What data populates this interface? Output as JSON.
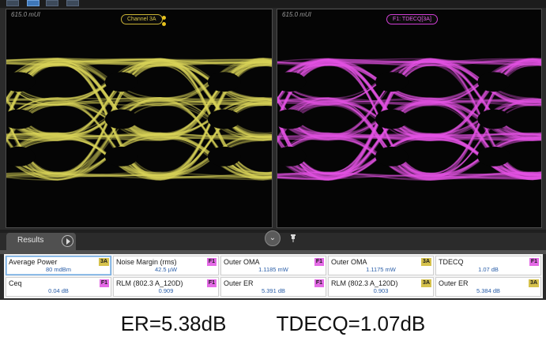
{
  "colors": {
    "channel_3a": "#d9d35a",
    "f1_math": "#e552e4"
  },
  "panes": {
    "left": {
      "scale": "615.0 mUI",
      "source": "Channel 3A"
    },
    "right": {
      "scale": "615.0 mUI",
      "source": "F1: TDECQ[3A]"
    }
  },
  "results": {
    "tab_label": "Results",
    "measurements": [
      {
        "name": "Average Power",
        "source": "3A",
        "value": "80 mdBm"
      },
      {
        "name": "Noise Margin (rms)",
        "source": "F1",
        "value": "42.5 µW"
      },
      {
        "name": "Outer OMA",
        "source": "F1",
        "value": "1.1185 mW"
      },
      {
        "name": "Outer OMA",
        "source": "3A",
        "value": "1.1175 mW"
      },
      {
        "name": "TDECQ",
        "source": "F1",
        "value": "1.07 dB"
      },
      {
        "name": "Ceq",
        "source": "F1",
        "value": "0.04 dB"
      },
      {
        "name": "RLM (802.3 A_120D)",
        "source": "F1",
        "value": "0.909"
      },
      {
        "name": "Outer ER",
        "source": "F1",
        "value": "5.391 dB"
      },
      {
        "name": "RLM (802.3 A_120D)",
        "source": "3A",
        "value": "0.903"
      },
      {
        "name": "Outer ER",
        "source": "3A",
        "value": "5.384 dB"
      }
    ]
  },
  "caption": {
    "er": "ER=5.38dB",
    "tdecq": "TDECQ=1.07dB"
  }
}
